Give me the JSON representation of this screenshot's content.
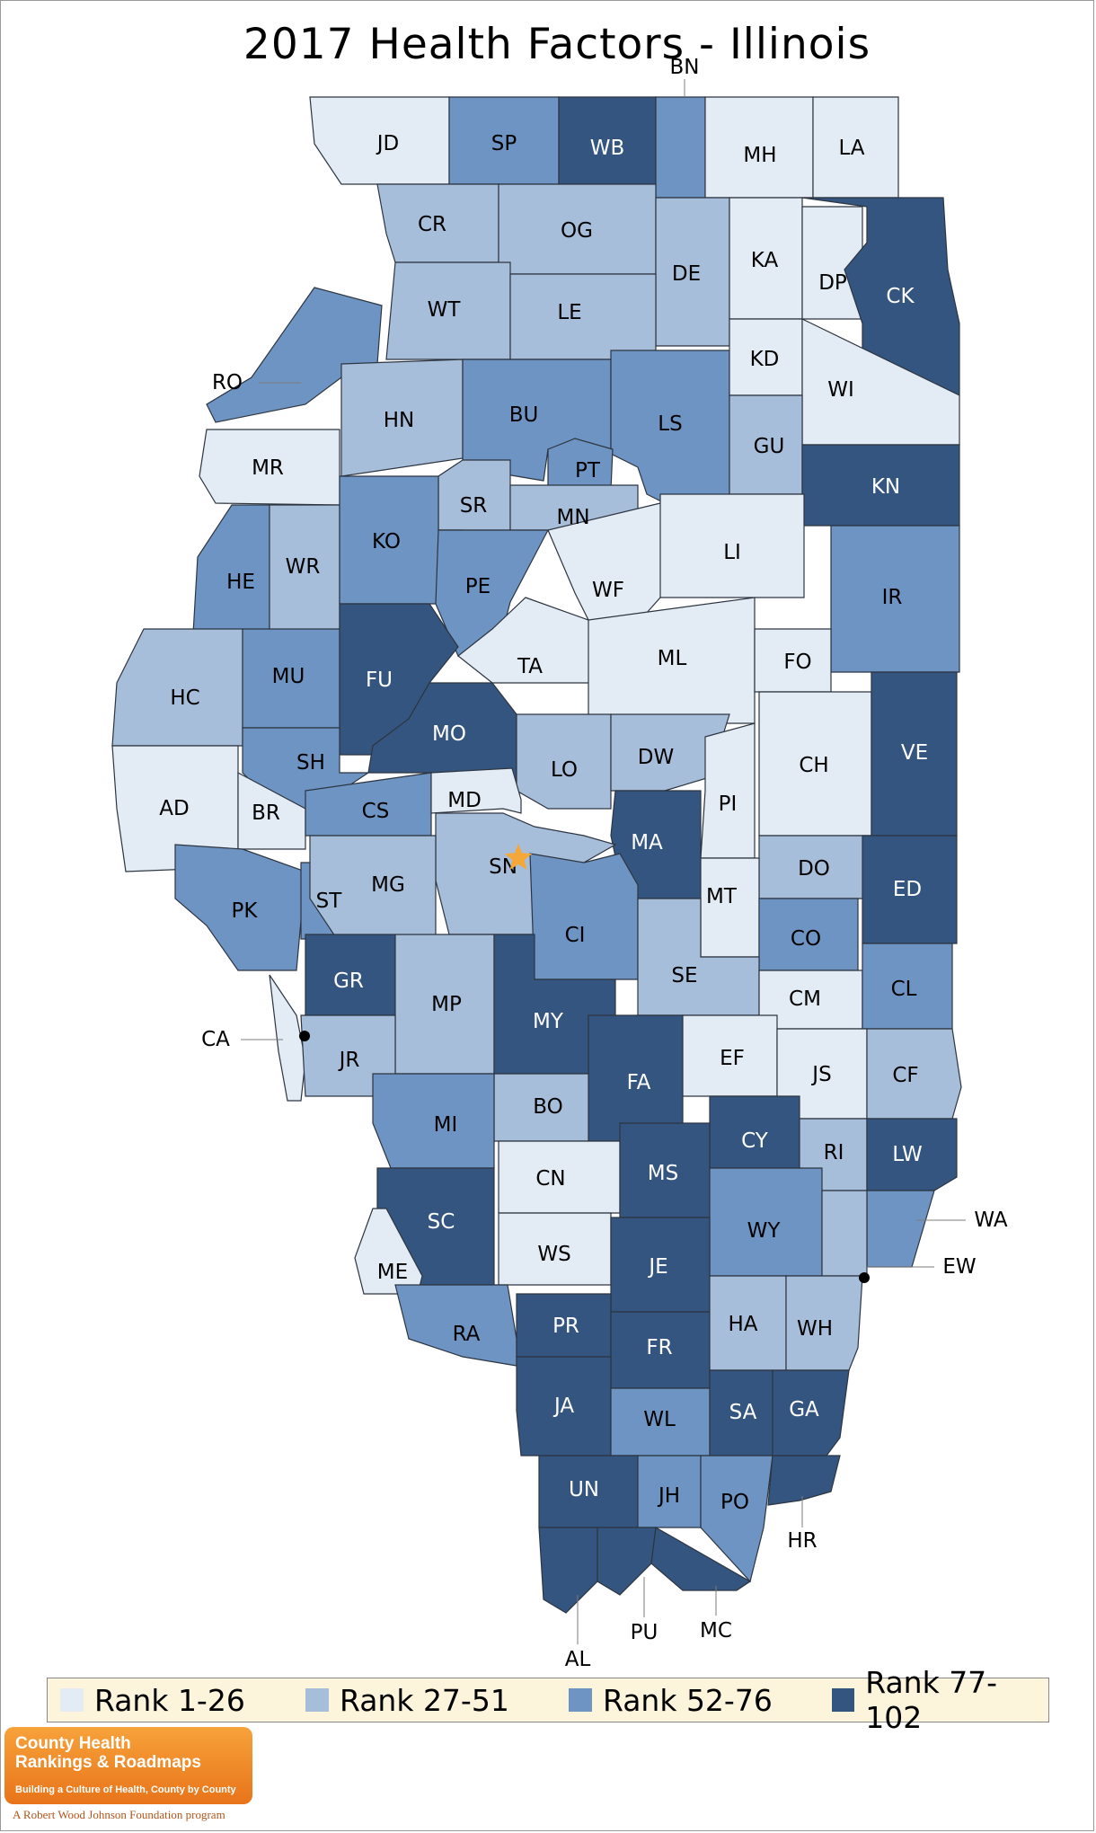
{
  "title": "2017 Health Factors - Illinois",
  "colors": {
    "tier1": "#e3ebf5",
    "tier2": "#a7bedb",
    "tier3": "#6e94c3",
    "tier4": "#34557f",
    "state_marker": "#f4a83a",
    "border": "#2d3540"
  },
  "legend": [
    {
      "label": "Rank 1-26",
      "tier": "tier1"
    },
    {
      "label": "Rank 27-51",
      "tier": "tier2"
    },
    {
      "label": "Rank 52-76",
      "tier": "tier3"
    },
    {
      "label": "Rank 77-102",
      "tier": "tier4"
    }
  ],
  "capital_marker": "star-icon",
  "counties": {
    "JD": "tier1",
    "SP": "tier3",
    "WB": "tier4",
    "BN": "tier3",
    "MH": "tier1",
    "LA": "tier1",
    "CR": "tier2",
    "OG": "tier2",
    "DE": "tier2",
    "KA": "tier1",
    "DP": "tier1",
    "CK": "tier4",
    "WT": "tier2",
    "LE": "tier2",
    "RO": "tier3",
    "HN": "tier2",
    "BU": "tier3",
    "LS": "tier3",
    "KD": "tier1",
    "WI": "tier1",
    "MR": "tier1",
    "PT": "tier3",
    "GU": "tier2",
    "KN": "tier4",
    "SR": "tier2",
    "MN": "tier2",
    "HE": "tier3",
    "WR": "tier2",
    "KO": "tier3",
    "PE": "tier3",
    "WF": "tier1",
    "LI": "tier1",
    "IR": "tier3",
    "HC": "tier2",
    "MU": "tier3",
    "FU": "tier4",
    "TA": "tier1",
    "ML": "tier1",
    "FO": "tier1",
    "MO": "tier4",
    "AD": "tier1",
    "SH": "tier3",
    "LO": "tier2",
    "DW": "tier2",
    "CH": "tier1",
    "VE": "tier4",
    "BR": "tier1",
    "CS": "tier3",
    "MD": "tier1",
    "PI": "tier1",
    "MA": "tier4",
    "SN": "tier2",
    "PK": "tier3",
    "ST": "tier3",
    "MG": "tier2",
    "DO": "tier2",
    "ED": "tier4",
    "MT": "tier1",
    "CI": "tier3",
    "CO": "tier3",
    "SE": "tier2",
    "GR": "tier4",
    "CM": "tier1",
    "CL": "tier3",
    "MP": "tier2",
    "MY": "tier4",
    "CA": "tier1",
    "JR": "tier2",
    "FA": "tier4",
    "EF": "tier1",
    "JS": "tier1",
    "CF": "tier2",
    "BO": "tier2",
    "MI": "tier3",
    "CY": "tier4",
    "RI": "tier2",
    "LW": "tier4",
    "CN": "tier1",
    "MS": "tier4",
    "SC": "tier4",
    "WY": "tier3",
    "WA": "tier3",
    "WS": "tier1",
    "EW": "tier2",
    "ME": "tier1",
    "JE": "tier4",
    "RA": "tier3",
    "PR": "tier4",
    "FR": "tier4",
    "HA": "tier2",
    "WH": "tier2",
    "JA": "tier4",
    "WL": "tier3",
    "SA": "tier4",
    "GA": "tier4",
    "UN": "tier4",
    "JH": "tier3",
    "PO": "tier3",
    "HR": "tier4",
    "AL": "tier4",
    "PU": "tier4",
    "MC": "tier4"
  },
  "logo": {
    "name": "County Health\nRankings & Roadmaps",
    "tagline": "Building a Culture of Health, County by County",
    "footer": "A Robert Wood Johnson Foundation program"
  }
}
